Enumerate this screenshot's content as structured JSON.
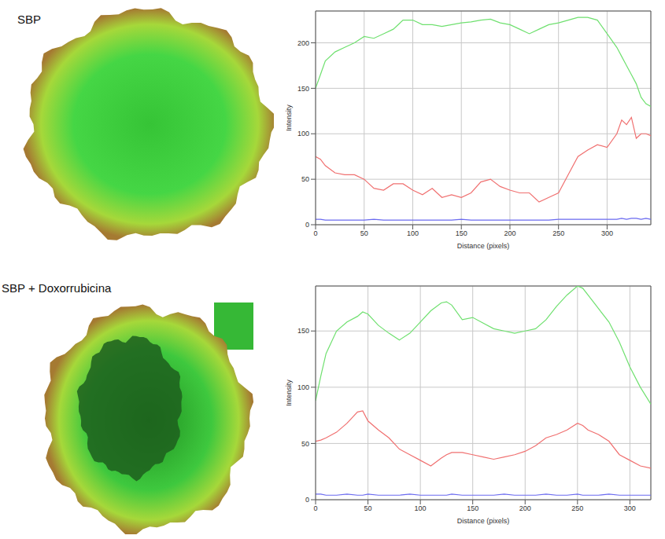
{
  "chart_data": [
    {
      "type": "line",
      "title": "SBP",
      "x_label": "Distance (pixels)",
      "y_label": "Intensity",
      "x": [
        0,
        5,
        10,
        20,
        30,
        40,
        50,
        60,
        70,
        80,
        90,
        100,
        110,
        120,
        130,
        140,
        150,
        160,
        170,
        180,
        190,
        200,
        210,
        220,
        230,
        240,
        250,
        260,
        270,
        280,
        290,
        300,
        310,
        315,
        320,
        325,
        330,
        335,
        340,
        345
      ],
      "series": [
        {
          "color": "#6fe06f",
          "values": [
            150,
            165,
            180,
            190,
            195,
            200,
            207,
            205,
            210,
            215,
            225,
            225,
            220,
            220,
            218,
            220,
            222,
            223,
            225,
            226,
            222,
            220,
            215,
            210,
            215,
            220,
            222,
            225,
            228,
            228,
            225,
            210,
            195,
            185,
            175,
            165,
            155,
            140,
            133,
            130
          ]
        },
        {
          "color": "#f07070",
          "values": [
            75,
            72,
            65,
            57,
            55,
            55,
            50,
            40,
            38,
            45,
            45,
            38,
            33,
            40,
            30,
            33,
            30,
            35,
            47,
            50,
            42,
            38,
            35,
            35,
            25,
            30,
            35,
            55,
            75,
            82,
            88,
            85,
            100,
            115,
            110,
            118,
            95,
            100,
            100,
            98
          ]
        },
        {
          "color": "#6a6af0",
          "values": [
            6,
            6,
            5,
            5,
            5,
            5,
            5,
            6,
            5,
            5,
            5,
            5,
            5,
            5,
            5,
            5,
            6,
            5,
            5,
            5,
            5,
            5,
            5,
            5,
            5,
            5,
            6,
            6,
            6,
            6,
            6,
            6,
            6,
            7,
            6,
            7,
            7,
            6,
            7,
            6
          ]
        }
      ],
      "xlim": [
        0,
        345
      ],
      "xticks": [
        0,
        50,
        100,
        150,
        200,
        250,
        300
      ],
      "ylim": [
        0,
        235
      ],
      "yticks": [
        0,
        50,
        100,
        150,
        200
      ],
      "grid": true
    },
    {
      "type": "line",
      "title": "SBP + Doxorrubicina",
      "x_label": "Distance (pixels)",
      "y_label": "Intensity",
      "x": [
        0,
        5,
        10,
        20,
        30,
        40,
        45,
        50,
        60,
        70,
        80,
        90,
        100,
        110,
        120,
        125,
        130,
        140,
        150,
        160,
        170,
        180,
        190,
        200,
        210,
        220,
        230,
        240,
        250,
        255,
        260,
        270,
        280,
        290,
        300,
        310,
        320
      ],
      "series": [
        {
          "color": "#6fe06f",
          "values": [
            88,
            110,
            130,
            150,
            158,
            163,
            167,
            165,
            155,
            148,
            142,
            148,
            158,
            168,
            175,
            176,
            173,
            160,
            162,
            157,
            152,
            150,
            148,
            150,
            152,
            160,
            172,
            182,
            190,
            188,
            182,
            170,
            158,
            140,
            118,
            100,
            85
          ]
        },
        {
          "color": "#f07070",
          "values": [
            52,
            53,
            55,
            60,
            68,
            78,
            79,
            70,
            62,
            55,
            45,
            40,
            35,
            30,
            37,
            40,
            42,
            42,
            40,
            38,
            36,
            38,
            40,
            43,
            48,
            55,
            58,
            62,
            68,
            66,
            62,
            58,
            52,
            40,
            35,
            30,
            28
          ]
        },
        {
          "color": "#6a6af0",
          "values": [
            5,
            5,
            4,
            4,
            5,
            4,
            4,
            5,
            4,
            4,
            4,
            5,
            4,
            4,
            4,
            4,
            5,
            4,
            4,
            4,
            4,
            5,
            4,
            4,
            4,
            5,
            4,
            4,
            5,
            4,
            4,
            4,
            5,
            4,
            4,
            4,
            4
          ]
        }
      ],
      "xlim": [
        0,
        320
      ],
      "xticks": [
        0,
        50,
        100,
        150,
        200,
        250,
        300
      ],
      "ylim": [
        0,
        190
      ],
      "yticks": [
        0,
        50,
        100,
        150
      ],
      "grid": true
    }
  ]
}
